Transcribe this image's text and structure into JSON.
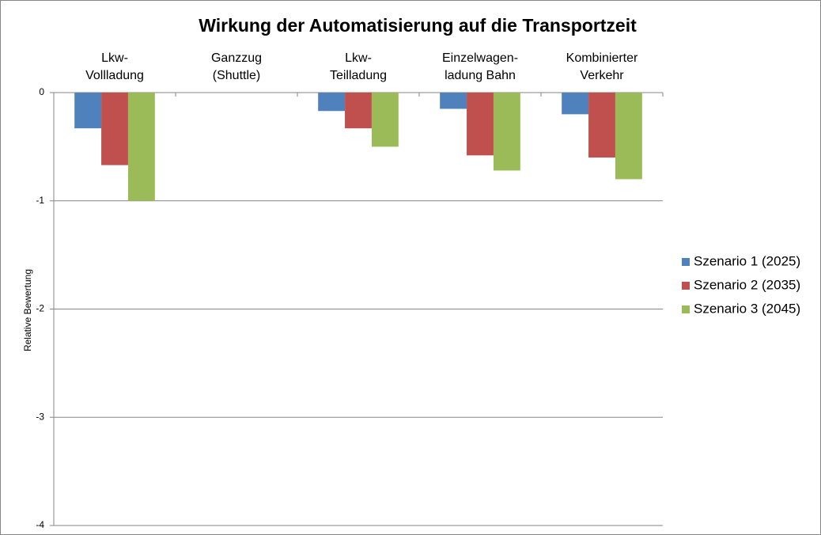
{
  "chart_data": {
    "type": "bar",
    "title": "Wirkung der Automatisierung auf die Transportzeit",
    "y_label": "Relative Bewertung",
    "categories": [
      [
        "Lkw-",
        "Vollladung"
      ],
      [
        "Ganzzug",
        "(Shuttle)"
      ],
      [
        "Lkw-",
        "Teilladung"
      ],
      [
        "Einzelwagen-",
        "ladung Bahn"
      ],
      [
        "Kombinierter",
        "Verkehr"
      ]
    ],
    "series": [
      {
        "name": "Szenario 1 (2025)",
        "color": "#4f81bd",
        "values": [
          -0.33,
          0,
          -0.17,
          -0.15,
          -0.2
        ]
      },
      {
        "name": "Szenario 2 (2035)",
        "color": "#c0504d",
        "values": [
          -0.67,
          0,
          -0.33,
          -0.58,
          -0.6
        ]
      },
      {
        "name": "Szenario 3 (2045)",
        "color": "#9bbb59",
        "values": [
          -1.0,
          0,
          -0.5,
          -0.72,
          -0.8
        ]
      }
    ],
    "ylim": [
      -4,
      0
    ],
    "yticks": [
      0,
      -1,
      -2,
      -3,
      -4
    ],
    "grid": true,
    "legend": "right"
  }
}
